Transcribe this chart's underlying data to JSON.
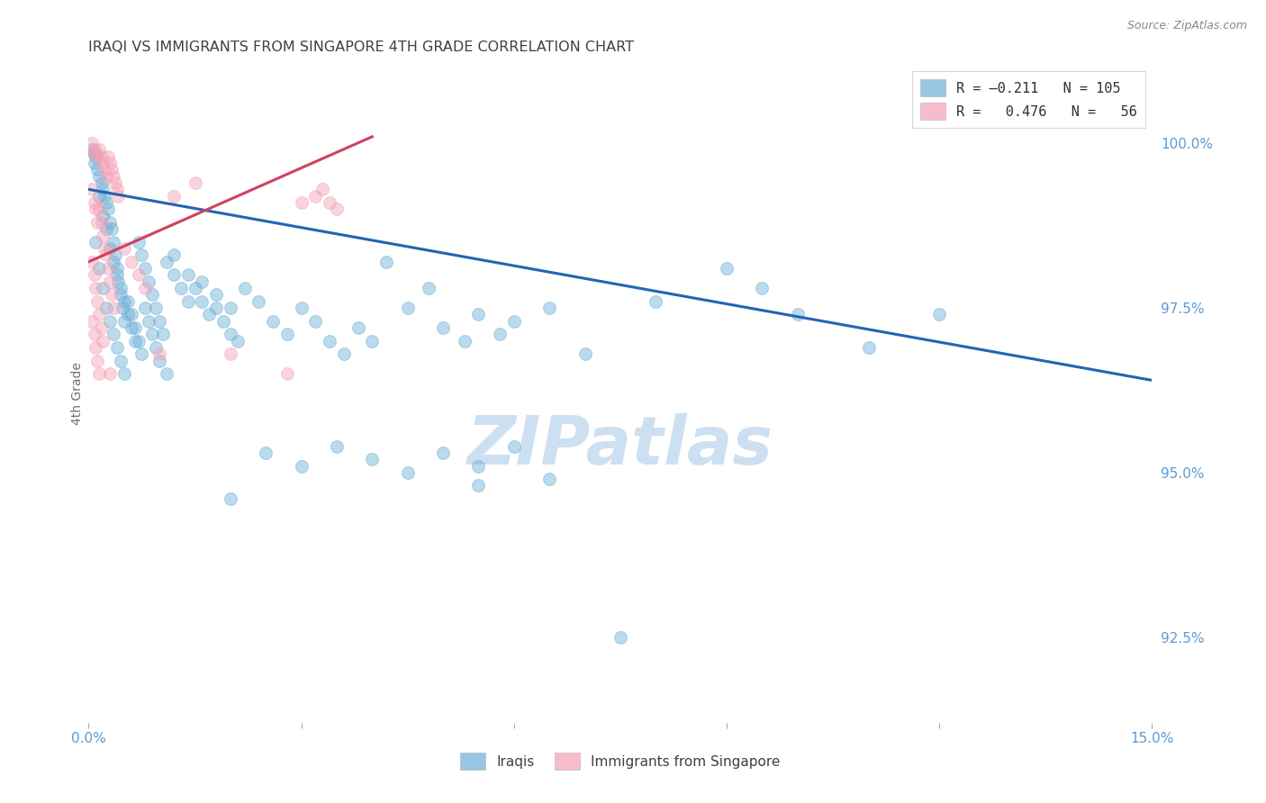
{
  "title": "IRAQI VS IMMIGRANTS FROM SINGAPORE 4TH GRADE CORRELATION CHART",
  "source": "Source: ZipAtlas.com",
  "ylabel": "4th Grade",
  "xlim": [
    0.0,
    15.0
  ],
  "ylim": [
    91.2,
    101.2
  ],
  "x_tick_positions": [
    0.0,
    3.0,
    6.0,
    9.0,
    12.0,
    15.0
  ],
  "x_tick_labels": [
    "0.0%",
    "",
    "",
    "",
    "",
    "15.0%"
  ],
  "y_ticks_right": [
    92.5,
    95.0,
    97.5,
    100.0
  ],
  "y_tick_labels_right": [
    "92.5%",
    "95.0%",
    "97.5%",
    "100.0%"
  ],
  "legend_labels_bottom": [
    "Iraqis",
    "Immigrants from Singapore"
  ],
  "blue_line_x": [
    0.0,
    15.0
  ],
  "blue_line_y": [
    99.3,
    96.4
  ],
  "pink_line_x": [
    0.0,
    4.0
  ],
  "pink_line_y": [
    98.2,
    100.1
  ],
  "watermark": "ZIPatlas",
  "watermark_color": "#cde0f2",
  "dot_size": 100,
  "dot_alpha": 0.45,
  "blue_color": "#6aaed6",
  "pink_color": "#f4a0b5",
  "blue_line_color": "#2464b4",
  "pink_line_color": "#d04060",
  "background_color": "#ffffff",
  "grid_color": "#cccccc",
  "title_color": "#404040",
  "axis_label_color": "#5b9bd5",
  "blue_dots": [
    [
      0.05,
      99.9
    ],
    [
      0.07,
      99.85
    ],
    [
      0.08,
      99.7
    ],
    [
      0.1,
      99.8
    ],
    [
      0.12,
      99.6
    ],
    [
      0.15,
      99.5
    ],
    [
      0.18,
      99.4
    ],
    [
      0.2,
      99.3
    ],
    [
      0.22,
      99.2
    ],
    [
      0.25,
      99.1
    ],
    [
      0.28,
      99.0
    ],
    [
      0.3,
      98.8
    ],
    [
      0.32,
      98.7
    ],
    [
      0.35,
      98.5
    ],
    [
      0.38,
      98.3
    ],
    [
      0.4,
      98.1
    ],
    [
      0.42,
      97.9
    ],
    [
      0.45,
      97.7
    ],
    [
      0.48,
      97.5
    ],
    [
      0.5,
      97.3
    ],
    [
      0.15,
      99.2
    ],
    [
      0.2,
      98.9
    ],
    [
      0.25,
      98.7
    ],
    [
      0.3,
      98.4
    ],
    [
      0.35,
      98.2
    ],
    [
      0.4,
      98.0
    ],
    [
      0.45,
      97.8
    ],
    [
      0.5,
      97.6
    ],
    [
      0.55,
      97.4
    ],
    [
      0.6,
      97.2
    ],
    [
      0.65,
      97.0
    ],
    [
      0.7,
      98.5
    ],
    [
      0.75,
      98.3
    ],
    [
      0.8,
      98.1
    ],
    [
      0.85,
      97.9
    ],
    [
      0.9,
      97.7
    ],
    [
      0.95,
      97.5
    ],
    [
      1.0,
      97.3
    ],
    [
      1.05,
      97.1
    ],
    [
      1.1,
      98.2
    ],
    [
      1.2,
      98.0
    ],
    [
      1.3,
      97.8
    ],
    [
      1.4,
      97.6
    ],
    [
      1.5,
      97.8
    ],
    [
      1.6,
      97.6
    ],
    [
      1.7,
      97.4
    ],
    [
      1.8,
      97.5
    ],
    [
      1.9,
      97.3
    ],
    [
      2.0,
      97.1
    ],
    [
      2.1,
      97.0
    ],
    [
      0.1,
      98.5
    ],
    [
      0.15,
      98.1
    ],
    [
      0.2,
      97.8
    ],
    [
      0.25,
      97.5
    ],
    [
      0.3,
      97.3
    ],
    [
      0.35,
      97.1
    ],
    [
      0.4,
      96.9
    ],
    [
      0.45,
      96.7
    ],
    [
      0.5,
      96.5
    ],
    [
      0.55,
      97.6
    ],
    [
      0.6,
      97.4
    ],
    [
      0.65,
      97.2
    ],
    [
      0.7,
      97.0
    ],
    [
      0.75,
      96.8
    ],
    [
      0.8,
      97.5
    ],
    [
      0.85,
      97.3
    ],
    [
      0.9,
      97.1
    ],
    [
      0.95,
      96.9
    ],
    [
      1.0,
      96.7
    ],
    [
      1.1,
      96.5
    ],
    [
      1.2,
      98.3
    ],
    [
      1.4,
      98.0
    ],
    [
      1.6,
      97.9
    ],
    [
      1.8,
      97.7
    ],
    [
      2.0,
      97.5
    ],
    [
      2.2,
      97.8
    ],
    [
      2.4,
      97.6
    ],
    [
      2.6,
      97.3
    ],
    [
      2.8,
      97.1
    ],
    [
      3.0,
      97.5
    ],
    [
      3.2,
      97.3
    ],
    [
      3.4,
      97.0
    ],
    [
      3.6,
      96.8
    ],
    [
      3.8,
      97.2
    ],
    [
      4.0,
      97.0
    ],
    [
      4.2,
      98.2
    ],
    [
      4.5,
      97.5
    ],
    [
      4.8,
      97.8
    ],
    [
      5.0,
      97.2
    ],
    [
      5.3,
      97.0
    ],
    [
      5.5,
      97.4
    ],
    [
      5.8,
      97.1
    ],
    [
      6.0,
      97.3
    ],
    [
      6.5,
      97.5
    ],
    [
      7.0,
      96.8
    ],
    [
      8.0,
      97.6
    ],
    [
      9.0,
      98.1
    ],
    [
      9.5,
      97.8
    ],
    [
      10.0,
      97.4
    ],
    [
      11.0,
      96.9
    ],
    [
      12.0,
      97.4
    ],
    [
      2.5,
      95.3
    ],
    [
      3.0,
      95.1
    ],
    [
      3.5,
      95.4
    ],
    [
      4.0,
      95.2
    ],
    [
      4.5,
      95.0
    ],
    [
      5.0,
      95.3
    ],
    [
      5.5,
      95.1
    ],
    [
      6.0,
      95.4
    ],
    [
      2.0,
      94.6
    ],
    [
      5.5,
      94.8
    ],
    [
      6.5,
      94.9
    ],
    [
      7.5,
      92.5
    ]
  ],
  "pink_dots": [
    [
      0.05,
      100.0
    ],
    [
      0.08,
      99.9
    ],
    [
      0.1,
      99.85
    ],
    [
      0.12,
      99.8
    ],
    [
      0.15,
      99.9
    ],
    [
      0.18,
      99.8
    ],
    [
      0.2,
      99.7
    ],
    [
      0.22,
      99.6
    ],
    [
      0.25,
      99.5
    ],
    [
      0.28,
      99.8
    ],
    [
      0.3,
      99.7
    ],
    [
      0.32,
      99.6
    ],
    [
      0.35,
      99.5
    ],
    [
      0.38,
      99.4
    ],
    [
      0.4,
      99.3
    ],
    [
      0.42,
      99.2
    ],
    [
      0.05,
      99.3
    ],
    [
      0.08,
      99.1
    ],
    [
      0.1,
      99.0
    ],
    [
      0.12,
      98.8
    ],
    [
      0.15,
      99.0
    ],
    [
      0.18,
      98.8
    ],
    [
      0.2,
      98.6
    ],
    [
      0.22,
      98.4
    ],
    [
      0.25,
      98.3
    ],
    [
      0.28,
      98.1
    ],
    [
      0.3,
      97.9
    ],
    [
      0.32,
      97.7
    ],
    [
      0.35,
      97.5
    ],
    [
      0.05,
      98.2
    ],
    [
      0.08,
      98.0
    ],
    [
      0.1,
      97.8
    ],
    [
      0.12,
      97.6
    ],
    [
      0.15,
      97.4
    ],
    [
      0.18,
      97.2
    ],
    [
      0.2,
      97.0
    ],
    [
      0.05,
      97.3
    ],
    [
      0.08,
      97.1
    ],
    [
      0.1,
      96.9
    ],
    [
      0.12,
      96.7
    ],
    [
      0.15,
      96.5
    ],
    [
      0.3,
      96.5
    ],
    [
      0.5,
      98.4
    ],
    [
      0.6,
      98.2
    ],
    [
      0.7,
      98.0
    ],
    [
      0.8,
      97.8
    ],
    [
      1.0,
      96.8
    ],
    [
      1.2,
      99.2
    ],
    [
      1.5,
      99.4
    ],
    [
      2.0,
      96.8
    ],
    [
      3.0,
      99.1
    ],
    [
      3.2,
      99.2
    ],
    [
      3.3,
      99.3
    ],
    [
      3.4,
      99.1
    ],
    [
      3.5,
      99.0
    ],
    [
      2.8,
      96.5
    ]
  ]
}
